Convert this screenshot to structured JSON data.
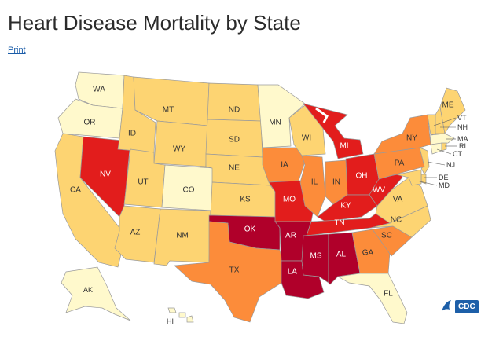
{
  "page": {
    "title": "Heart Disease Mortality by State",
    "print_label": "Print",
    "logo_text": "CDC"
  },
  "map": {
    "colors": {
      "c1": "#fff9cc",
      "c2": "#fdd472",
      "c3": "#fc8c3a",
      "c4": "#e21d1c",
      "c5": "#b0002a"
    },
    "states": [
      {
        "abbr": "WA",
        "cls": "c1"
      },
      {
        "abbr": "OR",
        "cls": "c1"
      },
      {
        "abbr": "CA",
        "cls": "c2"
      },
      {
        "abbr": "NV",
        "cls": "c4"
      },
      {
        "abbr": "ID",
        "cls": "c2"
      },
      {
        "abbr": "MT",
        "cls": "c2"
      },
      {
        "abbr": "WY",
        "cls": "c2"
      },
      {
        "abbr": "UT",
        "cls": "c2"
      },
      {
        "abbr": "AZ",
        "cls": "c2"
      },
      {
        "abbr": "CO",
        "cls": "c1"
      },
      {
        "abbr": "NM",
        "cls": "c2"
      },
      {
        "abbr": "ND",
        "cls": "c2"
      },
      {
        "abbr": "SD",
        "cls": "c2"
      },
      {
        "abbr": "NE",
        "cls": "c2"
      },
      {
        "abbr": "KS",
        "cls": "c2"
      },
      {
        "abbr": "OK",
        "cls": "c5"
      },
      {
        "abbr": "TX",
        "cls": "c3"
      },
      {
        "abbr": "MN",
        "cls": "c1"
      },
      {
        "abbr": "IA",
        "cls": "c3"
      },
      {
        "abbr": "MO",
        "cls": "c4"
      },
      {
        "abbr": "AR",
        "cls": "c5"
      },
      {
        "abbr": "LA",
        "cls": "c5"
      },
      {
        "abbr": "WI",
        "cls": "c2"
      },
      {
        "abbr": "IL",
        "cls": "c3"
      },
      {
        "abbr": "MI",
        "cls": "c4"
      },
      {
        "abbr": "IN",
        "cls": "c3"
      },
      {
        "abbr": "OH",
        "cls": "c4"
      },
      {
        "abbr": "KY",
        "cls": "c4"
      },
      {
        "abbr": "TN",
        "cls": "c4"
      },
      {
        "abbr": "MS",
        "cls": "c5"
      },
      {
        "abbr": "AL",
        "cls": "c5"
      },
      {
        "abbr": "GA",
        "cls": "c3"
      },
      {
        "abbr": "FL",
        "cls": "c1"
      },
      {
        "abbr": "SC",
        "cls": "c3"
      },
      {
        "abbr": "NC",
        "cls": "c2"
      },
      {
        "abbr": "VA",
        "cls": "c2"
      },
      {
        "abbr": "WV",
        "cls": "c4"
      },
      {
        "abbr": "PA",
        "cls": "c3"
      },
      {
        "abbr": "NY",
        "cls": "c3"
      },
      {
        "abbr": "VT",
        "cls": "c2"
      },
      {
        "abbr": "NH",
        "cls": "c2"
      },
      {
        "abbr": "ME",
        "cls": "c2"
      },
      {
        "abbr": "MA",
        "cls": "c1"
      },
      {
        "abbr": "RI",
        "cls": "c2"
      },
      {
        "abbr": "CT",
        "cls": "c1"
      },
      {
        "abbr": "NJ",
        "cls": "c2"
      },
      {
        "abbr": "DE",
        "cls": "c2"
      },
      {
        "abbr": "MD",
        "cls": "c2"
      },
      {
        "abbr": "AK",
        "cls": "c1"
      },
      {
        "abbr": "HI",
        "cls": "c1"
      }
    ]
  }
}
